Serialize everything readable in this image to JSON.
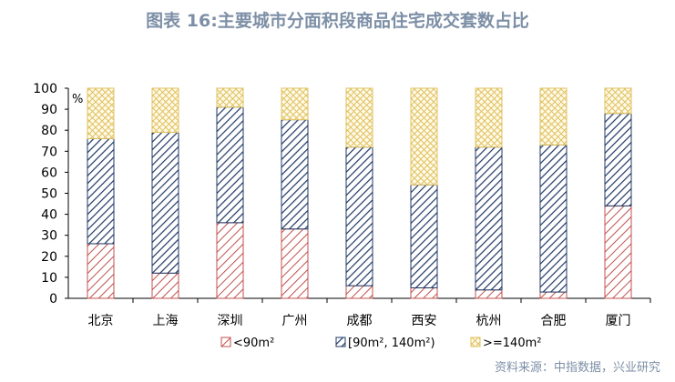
{
  "chart_data": {
    "type": "bar",
    "stacked": true,
    "title": "图表 16:主要城市分面积段商品住宅成交套数占比",
    "ylabel": "%",
    "xlabel": "",
    "ylim": [
      0,
      100
    ],
    "yticks": [
      0,
      10,
      20,
      30,
      40,
      50,
      60,
      70,
      80,
      90,
      100
    ],
    "grid": false,
    "legend_position": "bottom",
    "categories": [
      "北京",
      "上海",
      "深圳",
      "广州",
      "成都",
      "西安",
      "杭州",
      "合肥",
      "厦门"
    ],
    "series": [
      {
        "name": "<90m²",
        "color": "#c0504d",
        "pattern": "hatch-down",
        "values": [
          26,
          12,
          36,
          33,
          6,
          5,
          4,
          3,
          44
        ]
      },
      {
        "name": "[90m², 140m²)",
        "color": "#1f3864",
        "pattern": "hatch-down-dense",
        "values": [
          50,
          67,
          55,
          52,
          66,
          49,
          68,
          70,
          44
        ]
      },
      {
        "name": ">=140m²",
        "color": "#e0c060",
        "pattern": "crosshatch",
        "values": [
          24,
          21,
          9,
          15,
          28,
          46,
          28,
          27,
          12
        ]
      }
    ]
  },
  "source_text": "资料来源：中指数据，兴业研究"
}
